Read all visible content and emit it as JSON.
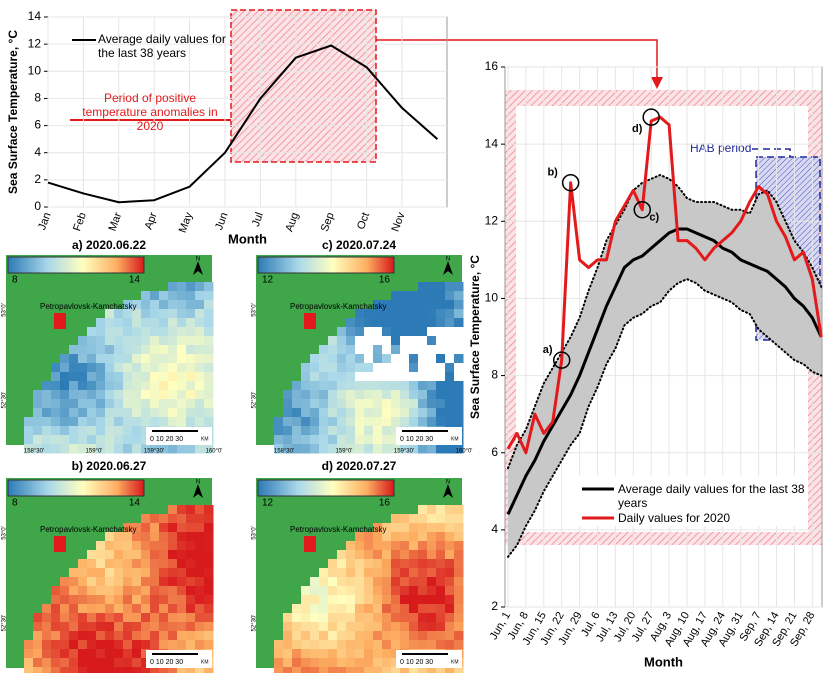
{
  "chart_data": [
    {
      "type": "line",
      "categories": [
        "Jan",
        "Feb",
        "Mar",
        "Apr",
        "May",
        "Jun",
        "Jul",
        "Aug",
        "Sep",
        "Oct",
        "Nov",
        null
      ],
      "series": [
        {
          "name": "Average daily values for the last 38 years",
          "color": "#000000",
          "values": [
            1.8,
            1.0,
            0.35,
            0.5,
            1.5,
            4.0,
            8.0,
            11.0,
            11.9,
            10.3,
            7.3,
            5.0
          ]
        }
      ],
      "ylim": [
        0,
        14
      ],
      "yticks": [
        0,
        2,
        4,
        6,
        8,
        10,
        12,
        14
      ],
      "xlabel": "Month",
      "ylabel": "Sea Surface Temperature, °C",
      "annotation": "Period of positive temperature anomalies in 2020",
      "grid": true
    },
    {
      "type": "line",
      "categories": [
        "Jun, 1",
        null,
        "Jun, 8",
        null,
        "Jun, 15",
        null,
        "Jun, 22",
        null,
        "Jun, 29",
        null,
        "Jul, 6",
        null,
        "Jul, 13",
        null,
        "Jul, 20",
        null,
        "Jul, 27",
        null,
        "Aug, 3",
        null,
        "Aug, 10",
        null,
        "Aug, 17",
        null,
        "Aug, 24",
        null,
        "Aug, 31",
        null,
        "Sep, 7",
        null,
        "Sep, 14",
        null,
        "Sep, 21",
        null,
        "Sep, 28",
        null
      ],
      "series": [
        {
          "name": "Average daily values for the last 38 years",
          "color": "#000000",
          "values": [
            4.4,
            4.9,
            5.4,
            5.8,
            6.3,
            6.7,
            7.1,
            7.5,
            8.0,
            8.6,
            9.2,
            9.8,
            10.3,
            10.8,
            11.0,
            11.1,
            11.3,
            11.5,
            11.7,
            11.8,
            11.8,
            11.7,
            11.6,
            11.5,
            11.3,
            11.2,
            11.0,
            10.9,
            10.8,
            10.7,
            10.5,
            10.3,
            10.0,
            9.8,
            9.5,
            9.0
          ]
        },
        {
          "name": "Daily values for 2020",
          "color": "#e31a1c",
          "values": [
            6.1,
            6.5,
            6.0,
            7.0,
            6.5,
            6.8,
            8.4,
            13.0,
            11.0,
            10.8,
            11.0,
            11.0,
            12.0,
            12.4,
            12.8,
            12.3,
            14.6,
            14.7,
            14.5,
            11.5,
            11.5,
            11.3,
            11.0,
            11.3,
            11.5,
            11.7,
            12.0,
            12.5,
            12.9,
            12.7,
            12.0,
            11.6,
            11.0,
            11.2,
            10.5,
            9.0
          ]
        }
      ],
      "band": {
        "color": "#c8c8c8",
        "upper": [
          5.6,
          6.2,
          6.6,
          7.2,
          7.8,
          8.2,
          8.6,
          9.0,
          9.5,
          10.2,
          10.8,
          11.5,
          11.9,
          12.3,
          12.8,
          13.0,
          13.1,
          13.2,
          13.1,
          12.9,
          12.6,
          12.5,
          12.5,
          12.5,
          12.4,
          12.3,
          12.3,
          12.2,
          12.7,
          12.8,
          12.5,
          12.0,
          11.5,
          11.2,
          10.8,
          10.3
        ],
        "lower": [
          3.3,
          3.6,
          4.1,
          4.5,
          5.0,
          5.4,
          5.8,
          6.2,
          6.5,
          7.2,
          7.7,
          8.3,
          8.7,
          9.3,
          9.5,
          9.6,
          9.8,
          9.9,
          10.2,
          10.4,
          10.5,
          10.4,
          10.2,
          10.1,
          10.0,
          9.9,
          9.7,
          9.6,
          9.2,
          9.0,
          8.8,
          8.6,
          8.4,
          8.3,
          8.1,
          8.0
        ]
      },
      "ylim": [
        2,
        16
      ],
      "yticks": [
        2,
        4,
        6,
        8,
        10,
        12,
        14,
        16
      ],
      "xlabel": "Month",
      "ylabel": "Sea Surface Temperature, °C",
      "annotations": {
        "hab": "HAB period",
        "a": "a)",
        "b": "b)",
        "c": "c)",
        "d": "d)"
      },
      "grid": true
    }
  ],
  "maps": [
    {
      "title": "a) 2020.06.22",
      "colorbar": [
        8,
        14
      ],
      "city": "Petropavlovsk-Kamchatsky"
    },
    {
      "title": "c) 2020.07.24",
      "colorbar": [
        12,
        16
      ],
      "city": "Petropavlovsk-Kamchatsky"
    },
    {
      "title": "b) 2020.06.27",
      "colorbar": [
        8,
        14
      ],
      "city": "Petropavlovsk-Kamchatsky"
    },
    {
      "title": "d) 2020.07.27",
      "colorbar": [
        12,
        16
      ],
      "city": "Petropavlovsk-Kamchatsky"
    }
  ],
  "map_labels": {
    "lat": [
      "53°0'",
      "52°30'"
    ],
    "lon": [
      "158°30'",
      "159°0'",
      "159°30'",
      "160°0'"
    ],
    "scale": "0   10  20  30",
    "unit": "KM",
    "north": "N"
  }
}
